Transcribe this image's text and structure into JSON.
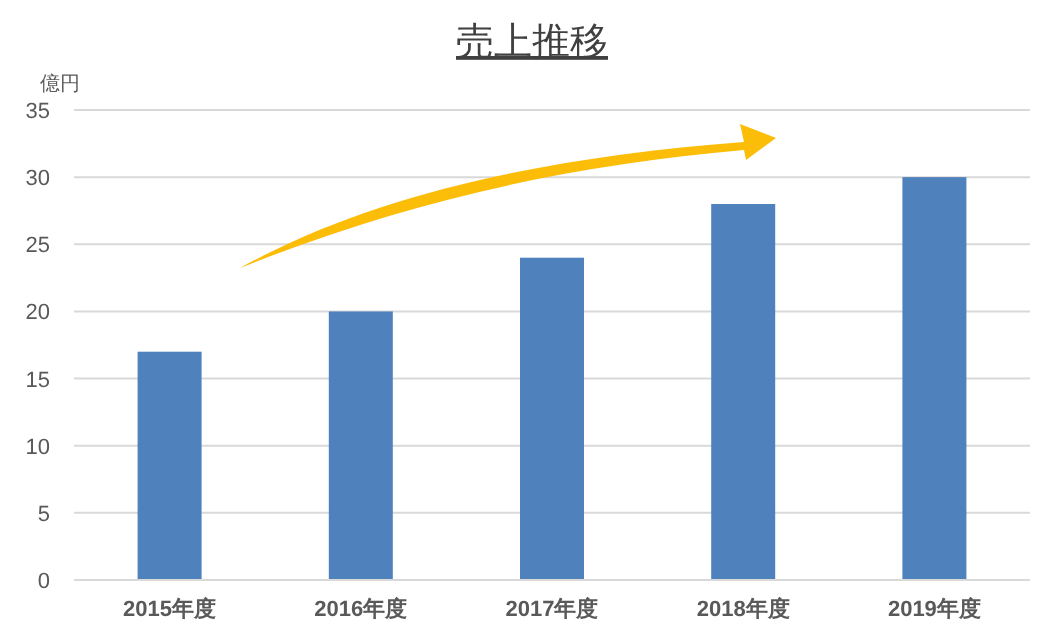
{
  "chart_data": {
    "type": "bar",
    "title": "売上推移",
    "ylabel": "億円",
    "categories": [
      "2015年度",
      "2016年度",
      "2017年度",
      "2018年度",
      "2019年度"
    ],
    "values": [
      17,
      20,
      24,
      28,
      30
    ],
    "color": "#4f81bd",
    "ylim": [
      0,
      35
    ],
    "yticks": [
      0,
      5,
      10,
      15,
      20,
      25,
      30,
      35
    ],
    "grid": "y"
  }
}
